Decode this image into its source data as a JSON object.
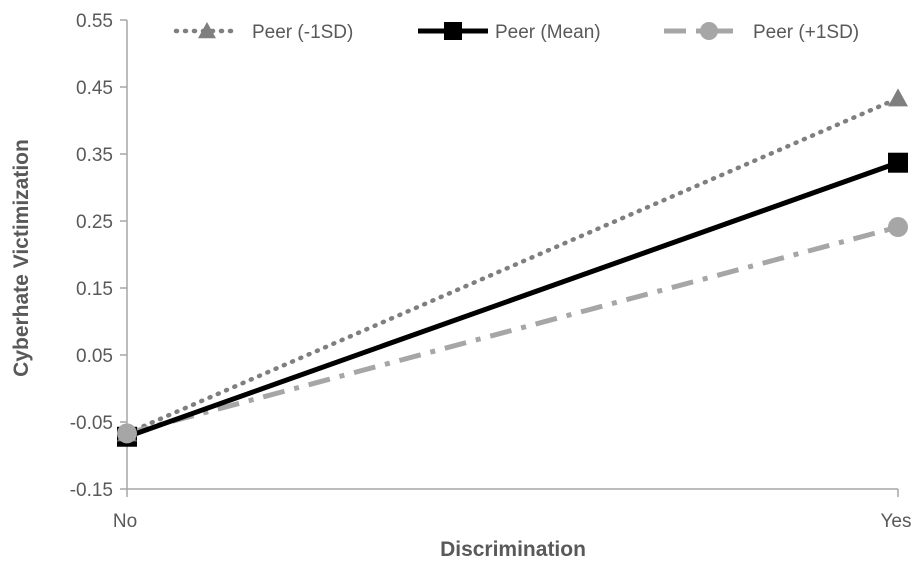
{
  "chart_data": {
    "type": "line",
    "categories": [
      "No",
      "Yes"
    ],
    "xlabel": "Discrimination",
    "ylabel": "Cyberhate Victimization",
    "ylim": [
      -0.15,
      0.55
    ],
    "yticks": [
      "-0.15",
      "-0.05",
      "0.05",
      "0.15",
      "0.25",
      "0.35",
      "0.45",
      "0.55"
    ],
    "grid": false,
    "legend_position": "top",
    "series": [
      {
        "name": "Peer (-1SD)",
        "values": [
          -0.067,
          0.433
        ],
        "color": "#7f7f7f",
        "marker": "triangle",
        "line_style": "dotted"
      },
      {
        "name": "Peer (Mean)",
        "values": [
          -0.072,
          0.337
        ],
        "color": "#000000",
        "marker": "square",
        "line_style": "solid"
      },
      {
        "name": "Peer (+1SD)",
        "values": [
          -0.067,
          0.241
        ],
        "color": "#a6a6a6",
        "marker": "circle",
        "line_style": "dash-dot"
      }
    ]
  }
}
